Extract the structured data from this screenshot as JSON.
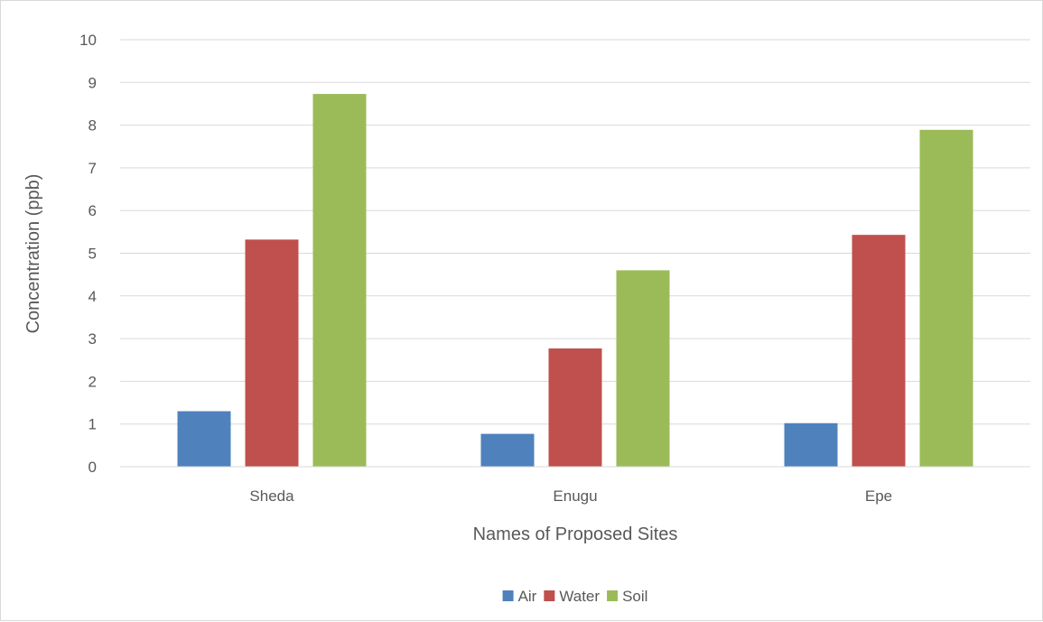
{
  "chart_data": {
    "type": "bar",
    "title": "",
    "xlabel": "Names of Proposed Sites",
    "ylabel": "Concentration (ppb)",
    "categories": [
      "Sheda",
      "Enugu",
      "Epe"
    ],
    "series": [
      {
        "name": "Air",
        "values": [
          1.3,
          0.77,
          1.02
        ],
        "color": "#4f81bd"
      },
      {
        "name": "Water",
        "values": [
          5.32,
          2.77,
          5.43
        ],
        "color": "#c0504d"
      },
      {
        "name": "Soil",
        "values": [
          8.73,
          4.6,
          7.89
        ],
        "color": "#9bbb59"
      }
    ],
    "ylim": [
      0,
      10
    ],
    "yticks": [
      "0",
      "1",
      "2",
      "3",
      "4",
      "5",
      "6",
      "7",
      "8",
      "9",
      "10"
    ],
    "grid": "horizontal",
    "legend_position": "bottom"
  }
}
